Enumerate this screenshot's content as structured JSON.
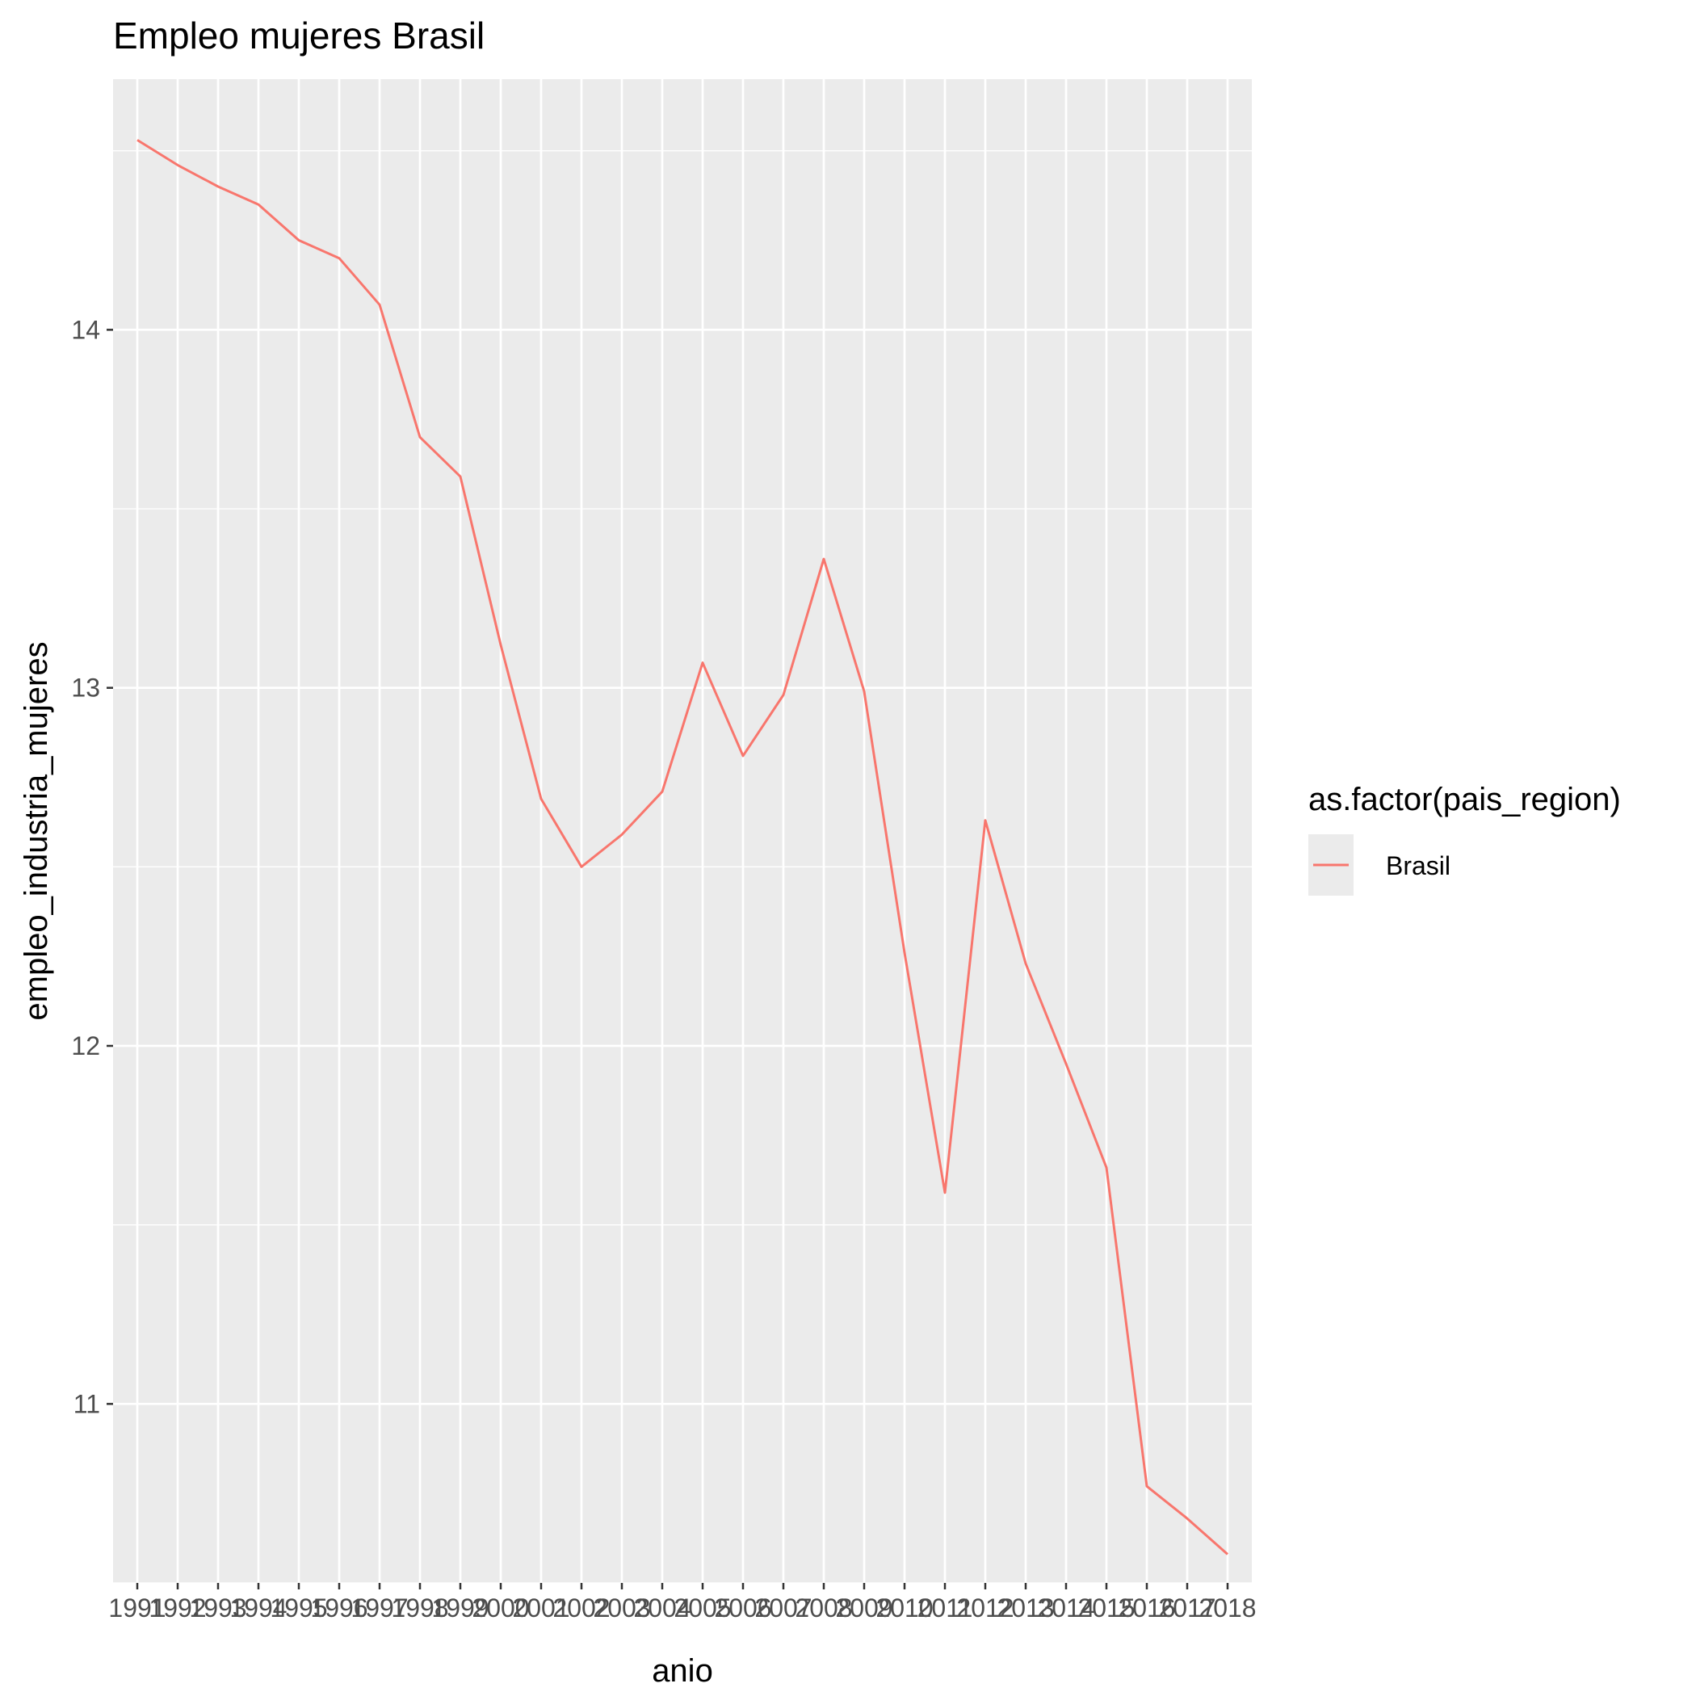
{
  "chart_data": {
    "type": "line",
    "title": "Empleo mujeres Brasil",
    "xlabel": "anio",
    "ylabel": "empleo_industria_mujeres",
    "x": [
      "1991",
      "1992",
      "1993",
      "1994",
      "1995",
      "1996",
      "1997",
      "1998",
      "1999",
      "2000",
      "2001",
      "2002",
      "2003",
      "2004",
      "2005",
      "2006",
      "2007",
      "2008",
      "2009",
      "2010",
      "2011",
      "2012",
      "2013",
      "2014",
      "2015",
      "2016",
      "2017",
      "2018"
    ],
    "yticks": [
      11,
      12,
      13,
      14
    ],
    "ylim": [
      10.5,
      14.7
    ],
    "grid": true,
    "legend": {
      "title": "as.factor(pais_region)",
      "position": "right"
    },
    "series": [
      {
        "name": "Brasil",
        "color": "#F8766D",
        "values": [
          14.53,
          14.46,
          14.4,
          14.35,
          14.25,
          14.2,
          14.07,
          13.7,
          13.59,
          13.12,
          12.69,
          12.5,
          12.59,
          12.71,
          13.07,
          12.81,
          12.98,
          13.36,
          12.99,
          12.26,
          11.59,
          12.63,
          12.23,
          11.95,
          11.66,
          10.77,
          10.68,
          10.58
        ]
      }
    ]
  },
  "theme": {
    "panel_background": "#EBEBEB",
    "grid_color": "#FFFFFF",
    "text_color": "#000000",
    "tick_label_color": "#4D4D4D",
    "tick_color": "#333333"
  }
}
